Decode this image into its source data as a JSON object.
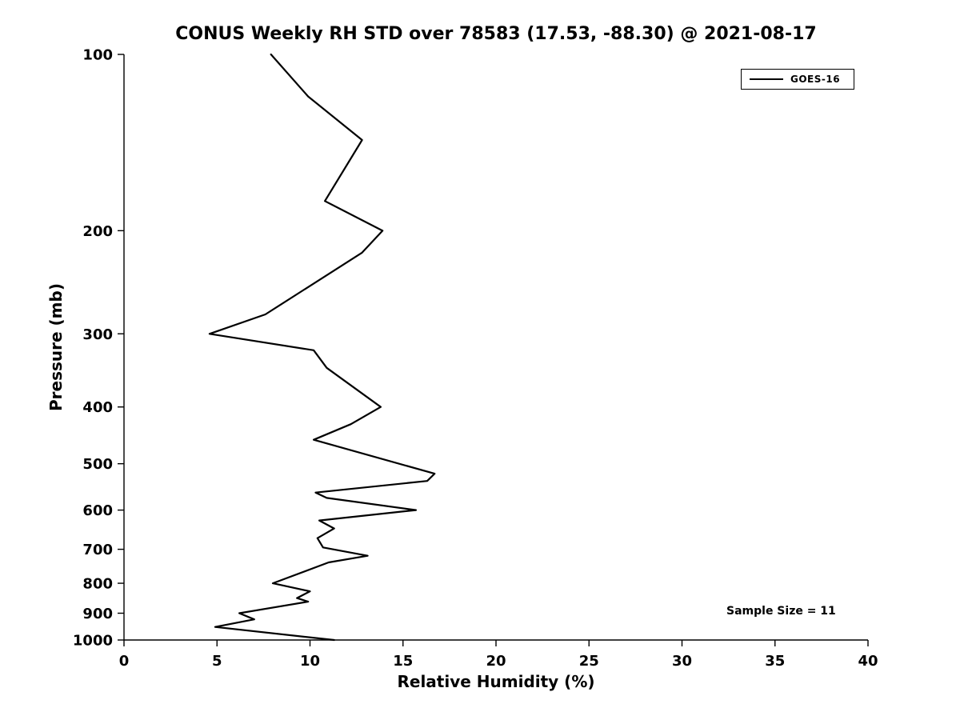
{
  "figure": {
    "title": "CONUS Weekly RH STD over 78583 (17.53, -88.30) @ 2021-08-17",
    "x_axis_label": "Relative Humidity (%)",
    "y_axis_label": "Pressure (mb)",
    "legend_label": "GOES-16",
    "sample_size_text": "Sample Size = 11"
  },
  "colors": {
    "line": "#000000",
    "text": "#000000",
    "background": "#ffffff"
  },
  "chart_data": {
    "type": "line",
    "title": "CONUS Weekly RH STD over 78583 (17.53, -88.30) @ 2021-08-17",
    "xlabel": "Relative Humidity (%)",
    "ylabel": "Pressure (mb)",
    "xlim": [
      0,
      40
    ],
    "ylim": [
      100,
      1000
    ],
    "y_scale": "log",
    "y_axis_inverted": true,
    "grid": false,
    "legend_position": "top-right",
    "x_ticks": [
      0,
      5,
      10,
      15,
      20,
      25,
      30,
      35,
      40
    ],
    "y_ticks": [
      100,
      200,
      300,
      400,
      500,
      600,
      700,
      800,
      900,
      1000
    ],
    "annotations": [
      "Sample Size = 11"
    ],
    "sample_size": 11,
    "series": [
      {
        "name": "GOES-16",
        "color": "#000000",
        "points_pressure_mb": [
          100,
          118,
          140,
          178,
          200,
          218,
          278,
          300,
          320,
          343,
          400,
          428,
          455,
          520,
          535,
          560,
          572,
          600,
          625,
          645,
          670,
          695,
          718,
          737,
          800,
          826,
          848,
          860,
          900,
          922,
          950,
          1000
        ],
        "points_rh_pct": [
          7.9,
          9.9,
          12.8,
          10.8,
          13.9,
          12.8,
          7.6,
          4.6,
          10.2,
          10.9,
          13.8,
          12.2,
          10.2,
          16.7,
          16.3,
          10.3,
          10.9,
          15.7,
          10.5,
          11.3,
          10.4,
          10.7,
          13.1,
          11.0,
          8.0,
          10.0,
          9.3,
          9.9,
          6.2,
          7.0,
          4.9,
          11.3
        ]
      }
    ]
  }
}
